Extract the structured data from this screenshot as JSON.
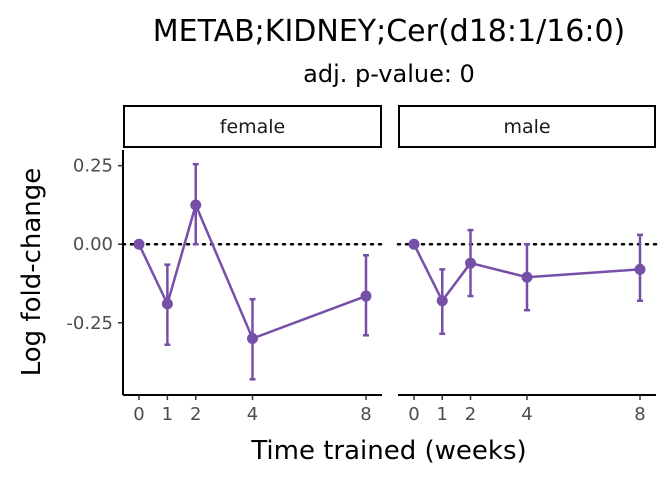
{
  "chart_data": {
    "type": "line",
    "title": "METAB;KIDNEY;Cer(d18:1/16:0)",
    "subtitle": "adj. p-value: 0",
    "xlabel": "Time trained (weeks)",
    "ylabel": "Log fold-change",
    "x_ticks": [
      0,
      1,
      2,
      4,
      8
    ],
    "y_ticks": [
      {
        "value": 0.25,
        "label": "0.25"
      },
      {
        "value": 0.0,
        "label": "0.00"
      },
      {
        "value": -0.25,
        "label": "-0.25"
      }
    ],
    "ylim": [
      -0.48,
      0.3
    ],
    "reference_line": 0,
    "grid": false,
    "color": "#7650A8",
    "facets": [
      {
        "label": "female",
        "points": [
          {
            "x": 0,
            "y": 0.0,
            "lo": 0.0,
            "hi": 0.0
          },
          {
            "x": 1,
            "y": -0.19,
            "lo": -0.32,
            "hi": -0.065
          },
          {
            "x": 2,
            "y": 0.125,
            "lo": 0.0,
            "hi": 0.255
          },
          {
            "x": 4,
            "y": -0.3,
            "lo": -0.43,
            "hi": -0.175
          },
          {
            "x": 8,
            "y": -0.165,
            "lo": -0.29,
            "hi": -0.035
          }
        ]
      },
      {
        "label": "male",
        "points": [
          {
            "x": 0,
            "y": 0.0,
            "lo": 0.0,
            "hi": 0.0
          },
          {
            "x": 1,
            "y": -0.18,
            "lo": -0.285,
            "hi": -0.08
          },
          {
            "x": 2,
            "y": -0.06,
            "lo": -0.165,
            "hi": 0.045
          },
          {
            "x": 4,
            "y": -0.105,
            "lo": -0.21,
            "hi": 0.0
          },
          {
            "x": 8,
            "y": -0.08,
            "lo": -0.18,
            "hi": 0.03
          }
        ]
      }
    ]
  }
}
